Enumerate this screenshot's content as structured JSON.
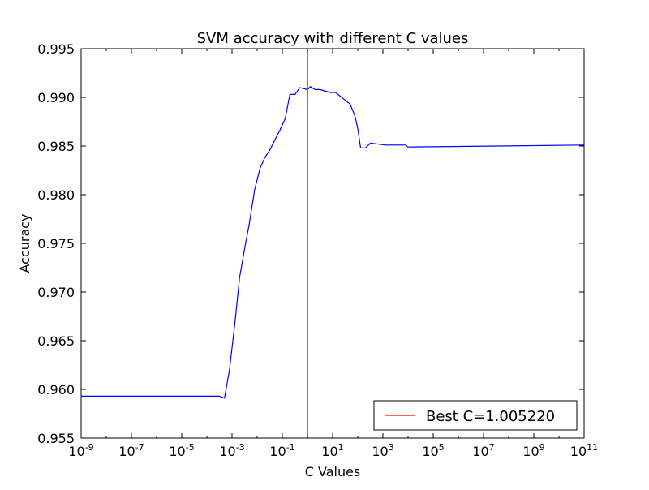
{
  "chart_data": {
    "type": "line",
    "title": "SVM accuracy with different C values",
    "xlabel": "C Values",
    "ylabel": "Accuracy",
    "x_scale": "log10",
    "xlim": [
      1e-09,
      100000000000.0
    ],
    "ylim": [
      0.955,
      0.995
    ],
    "x_ticks": [
      {
        "value": 1e-09,
        "base": "10",
        "exp": "-9"
      },
      {
        "value": 1e-07,
        "base": "10",
        "exp": "-7"
      },
      {
        "value": 1e-05,
        "base": "10",
        "exp": "-5"
      },
      {
        "value": 0.001,
        "base": "10",
        "exp": "-3"
      },
      {
        "value": 0.1,
        "base": "10",
        "exp": "-1"
      },
      {
        "value": 10.0,
        "base": "10",
        "exp": "1"
      },
      {
        "value": 1000.0,
        "base": "10",
        "exp": "3"
      },
      {
        "value": 100000.0,
        "base": "10",
        "exp": "5"
      },
      {
        "value": 10000000.0,
        "base": "10",
        "exp": "7"
      },
      {
        "value": 1000000000.0,
        "base": "10",
        "exp": "9"
      },
      {
        "value": 100000000000.0,
        "base": "10",
        "exp": "11"
      }
    ],
    "y_ticks": [
      0.955,
      0.96,
      0.965,
      0.97,
      0.975,
      0.98,
      0.985,
      0.99,
      0.995
    ],
    "y_tick_labels": [
      "0.955",
      "0.960",
      "0.965",
      "0.970",
      "0.975",
      "0.980",
      "0.985",
      "0.990",
      "0.995"
    ],
    "grid": false,
    "series": [
      {
        "color": "#0000ff",
        "x": [
          1e-09,
          0.00032,
          0.0005,
          0.00079,
          0.0013,
          0.002,
          0.0032,
          0.005,
          0.0079,
          0.013,
          0.02,
          0.032,
          0.05,
          0.079,
          0.13,
          0.2,
          0.32,
          0.5,
          1.0,
          1.3,
          2.0,
          3.2,
          7.9,
          13.0,
          32.0,
          50.0,
          79.0,
          100.0,
          130.0,
          200.0,
          320.0,
          1300.0,
          3200.0,
          5000.0,
          7900.0,
          10000.0,
          100000000000.0
        ],
        "y": [
          0.9593,
          0.9593,
          0.9591,
          0.962,
          0.9668,
          0.9715,
          0.9745,
          0.9772,
          0.9805,
          0.9827,
          0.9838,
          0.9846,
          0.9856,
          0.9866,
          0.9878,
          0.9903,
          0.9903,
          0.991,
          0.9908,
          0.9911,
          0.9908,
          0.9908,
          0.9905,
          0.9905,
          0.9897,
          0.9893,
          0.988,
          0.9868,
          0.9848,
          0.9848,
          0.9853,
          0.9851,
          0.9851,
          0.9851,
          0.9851,
          0.9849,
          0.9851
        ]
      }
    ],
    "vline": {
      "x": 1.00522,
      "color": "#ff0000"
    },
    "legend": {
      "position": "lower-right",
      "entries": [
        {
          "label": "Best C=1.005220",
          "color": "#ff0000"
        }
      ]
    }
  }
}
